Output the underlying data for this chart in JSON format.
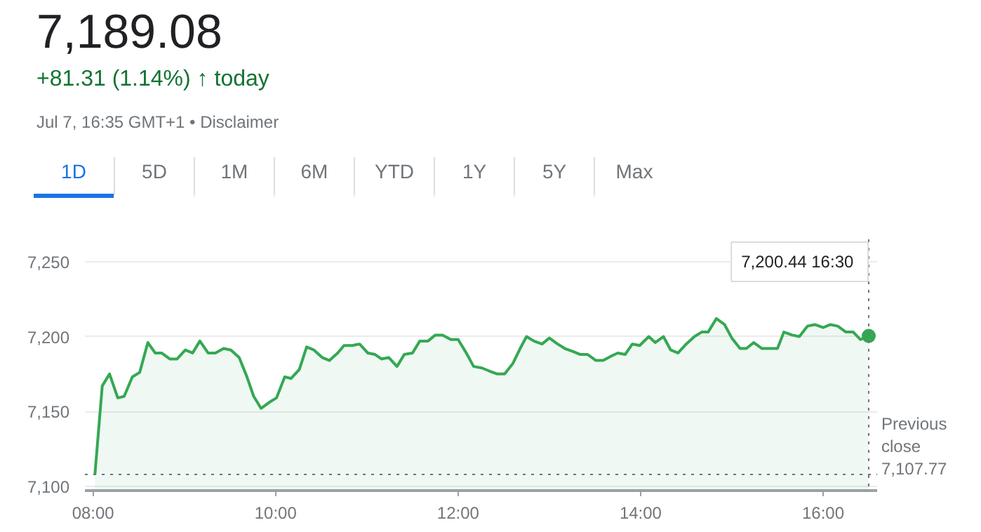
{
  "chart_data": {
    "type": "area",
    "title": "7,189.08",
    "subtitle": "+81.31 (1.14%) ↑ today",
    "annotations": [
      "Jul 7, 16:35 GMT+1 • Disclaimer",
      "1D",
      "5D",
      "1M",
      "6M",
      "YTD",
      "1Y",
      "5Y",
      "Max"
    ],
    "series": [
      {
        "color": "#34a853",
        "x": [
          8.02,
          8.1,
          8.18,
          8.27,
          8.34,
          8.43,
          8.51,
          8.6,
          8.68,
          8.75,
          8.84,
          8.92,
          9.01,
          9.09,
          9.17,
          9.26,
          9.34,
          9.43,
          9.51,
          9.6,
          9.68,
          9.76,
          9.84,
          9.93,
          10.01,
          10.1,
          10.17,
          10.26,
          10.34,
          10.42,
          10.51,
          10.59,
          10.68,
          10.75,
          10.84,
          10.92,
          11.01,
          11.09,
          11.16,
          11.24,
          11.33,
          11.41,
          11.5,
          11.58,
          11.67,
          11.75,
          11.83,
          11.92,
          12.0,
          12.09,
          12.17,
          12.26,
          12.34,
          12.43,
          12.51,
          12.6,
          12.68,
          12.75,
          12.83,
          12.92,
          13.0,
          13.09,
          13.17,
          13.26,
          13.34,
          13.42,
          13.51,
          13.59,
          13.68,
          13.75,
          13.83,
          13.91,
          13.99,
          14.09,
          14.16,
          14.25,
          14.33,
          14.41,
          14.5,
          14.59,
          14.67,
          14.74,
          14.83,
          14.92,
          15.0,
          15.09,
          15.16,
          15.24,
          15.33,
          15.41,
          15.5,
          15.57,
          15.66,
          15.74,
          15.83,
          15.91,
          16.0,
          16.08,
          16.16,
          16.25,
          16.33,
          16.41,
          16.5
        ],
        "values": [
          7108,
          7167,
          7175,
          7159,
          7160,
          7173,
          7176,
          7196,
          7189,
          7189,
          7185,
          7185,
          7191,
          7189,
          7197,
          7189,
          7189,
          7192,
          7191,
          7186,
          7174,
          7160,
          7152,
          7156,
          7159,
          7173,
          7172,
          7178,
          7193,
          7191,
          7186,
          7184,
          7189,
          7194,
          7194,
          7195,
          7189,
          7188,
          7185,
          7186,
          7180,
          7188,
          7189,
          7197,
          7197,
          7201,
          7201,
          7198,
          7198,
          7189,
          7180,
          7179,
          7177,
          7175,
          7175,
          7182,
          7192,
          7200,
          7197,
          7195,
          7199,
          7195,
          7192,
          7190,
          7188,
          7188,
          7184,
          7184,
          7187,
          7189,
          7188,
          7195,
          7194,
          7200,
          7196,
          7200,
          7191,
          7189,
          7195,
          7200,
          7203,
          7203,
          7212,
          7208,
          7199,
          7192,
          7192,
          7196,
          7192,
          7192,
          7192,
          7203,
          7201,
          7200,
          7207,
          7208,
          7206,
          7208,
          7207,
          7203,
          7203,
          7198,
          7200.44
        ]
      }
    ],
    "xlim": [
      7.91,
      16.6
    ],
    "ylim": [
      7097,
      7265
    ],
    "xticks": [
      {
        "value": 8,
        "label": "08:00"
      },
      {
        "value": 10,
        "label": "10:00"
      },
      {
        "value": 12,
        "label": "12:00"
      },
      {
        "value": 14,
        "label": "14:00"
      },
      {
        "value": 16,
        "label": "16:00"
      }
    ],
    "yticks": [
      {
        "value": 7100,
        "label": "7,100"
      },
      {
        "value": 7150,
        "label": "7,150"
      },
      {
        "value": 7200,
        "label": "7,200"
      },
      {
        "value": 7250,
        "label": "7,250"
      }
    ],
    "grid": "y",
    "ref_lines": [
      {
        "axis": "y",
        "value": 7107.77,
        "label": "Previous close 7,107.77",
        "color": "#70757a",
        "line_style": "dotted"
      },
      {
        "axis": "x",
        "value": 16.5,
        "label": "7,200.44  16:30",
        "color": "#70757a",
        "line_style": "dotted"
      }
    ]
  }
}
